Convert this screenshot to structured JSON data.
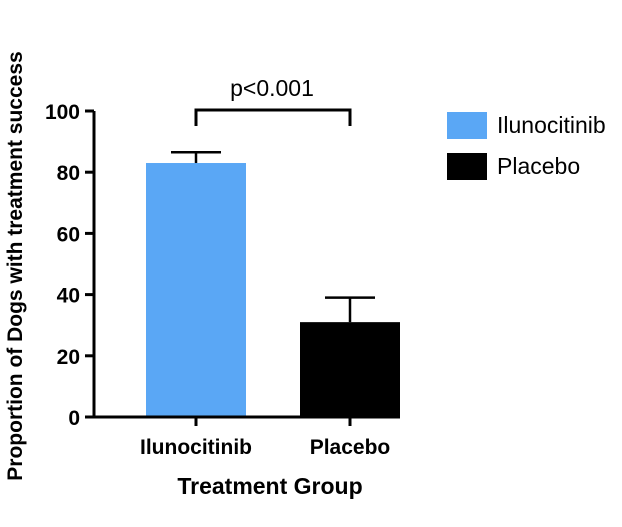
{
  "chart_data": {
    "type": "bar",
    "categories": [
      "Ilunocitinib",
      "Placebo"
    ],
    "values": [
      83,
      31
    ],
    "error_upper": [
      86.5,
      39
    ],
    "colors": [
      "#5aa7f5",
      "#000000"
    ],
    "xlabel": "Treatment Group",
    "ylabel": "Proportion of Dogs with treatment success",
    "ylim": [
      0,
      100
    ],
    "yticks": [
      0,
      20,
      40,
      60,
      80,
      100
    ],
    "ytick_labels": [
      "0",
      "20",
      "40",
      "60",
      "80",
      "100"
    ],
    "annotation": "p<0.001",
    "legend": {
      "position": "right",
      "entries": [
        {
          "label": "Ilunocitinib",
          "color": "#5aa7f5"
        },
        {
          "label": "Placebo",
          "color": "#000000"
        }
      ]
    },
    "grid": false
  }
}
